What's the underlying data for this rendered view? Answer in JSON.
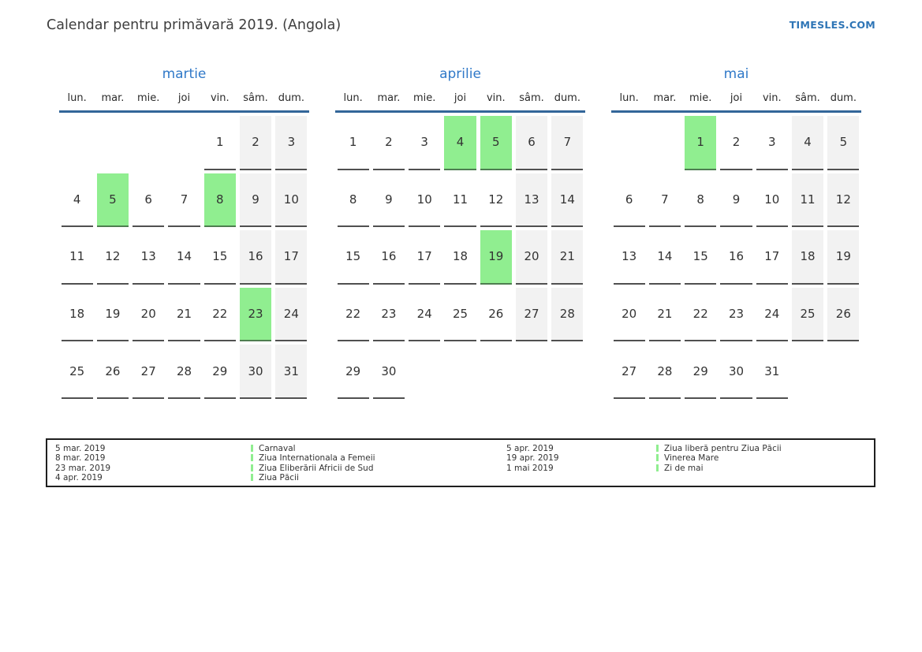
{
  "page": {
    "title": "Calendar pentru primăvară 2019. (Angola)",
    "site_link": "TIMESLES.COM"
  },
  "colors": {
    "month_title_blue": "#3079c8",
    "site_link_blue": "#2e75b6",
    "header_rule_blue": "#336699",
    "holiday_green": "#90ee90",
    "weekend_gray": "#f2f2f2",
    "day_underline": "#505050"
  },
  "calendar": {
    "weekdays": [
      "lun.",
      "mar.",
      "mie.",
      "joi",
      "vin.",
      "sâm.",
      "dum."
    ],
    "months": [
      {
        "name": "martie",
        "holidays": [
          "5",
          "8",
          "23"
        ],
        "weeks": [
          [
            "",
            "",
            "",
            "",
            "1",
            "2",
            "3"
          ],
          [
            "4",
            "5",
            "6",
            "7",
            "8",
            "9",
            "10"
          ],
          [
            "11",
            "12",
            "13",
            "14",
            "15",
            "16",
            "17"
          ],
          [
            "18",
            "19",
            "20",
            "21",
            "22",
            "23",
            "24"
          ],
          [
            "25",
            "26",
            "27",
            "28",
            "29",
            "30",
            "31"
          ]
        ]
      },
      {
        "name": "aprilie",
        "holidays": [
          "4",
          "5",
          "19"
        ],
        "weeks": [
          [
            "1",
            "2",
            "3",
            "4",
            "5",
            "6",
            "7"
          ],
          [
            "8",
            "9",
            "10",
            "11",
            "12",
            "13",
            "14"
          ],
          [
            "15",
            "16",
            "17",
            "18",
            "19",
            "20",
            "21"
          ],
          [
            "22",
            "23",
            "24",
            "25",
            "26",
            "27",
            "28"
          ],
          [
            "29",
            "30",
            "",
            "",
            "",
            "",
            ""
          ]
        ]
      },
      {
        "name": "mai",
        "holidays": [
          "1"
        ],
        "weeks": [
          [
            "",
            "",
            "1",
            "2",
            "3",
            "4",
            "5"
          ],
          [
            "6",
            "7",
            "8",
            "9",
            "10",
            "11",
            "12"
          ],
          [
            "13",
            "14",
            "15",
            "16",
            "17",
            "18",
            "19"
          ],
          [
            "20",
            "21",
            "22",
            "23",
            "24",
            "25",
            "26"
          ],
          [
            "27",
            "28",
            "29",
            "30",
            "31",
            "",
            ""
          ]
        ]
      }
    ]
  },
  "legend": {
    "columns": [
      {
        "entries": [
          {
            "date": "5 mar. 2019",
            "name": "Carnaval"
          },
          {
            "date": "8 mar. 2019",
            "name": "Ziua Internationala a Femeii"
          },
          {
            "date": "23 mar. 2019",
            "name": "Ziua Eliberării Africii de Sud"
          },
          {
            "date": "4 apr. 2019",
            "name": "Ziua Păcii"
          }
        ]
      },
      {
        "entries": [
          {
            "date": "5 apr. 2019",
            "name": "Ziua liberă pentru Ziua Păcii"
          },
          {
            "date": "19 apr. 2019",
            "name": "Vinerea Mare"
          },
          {
            "date": "1 mai 2019",
            "name": "Zi de mai"
          }
        ]
      }
    ]
  }
}
